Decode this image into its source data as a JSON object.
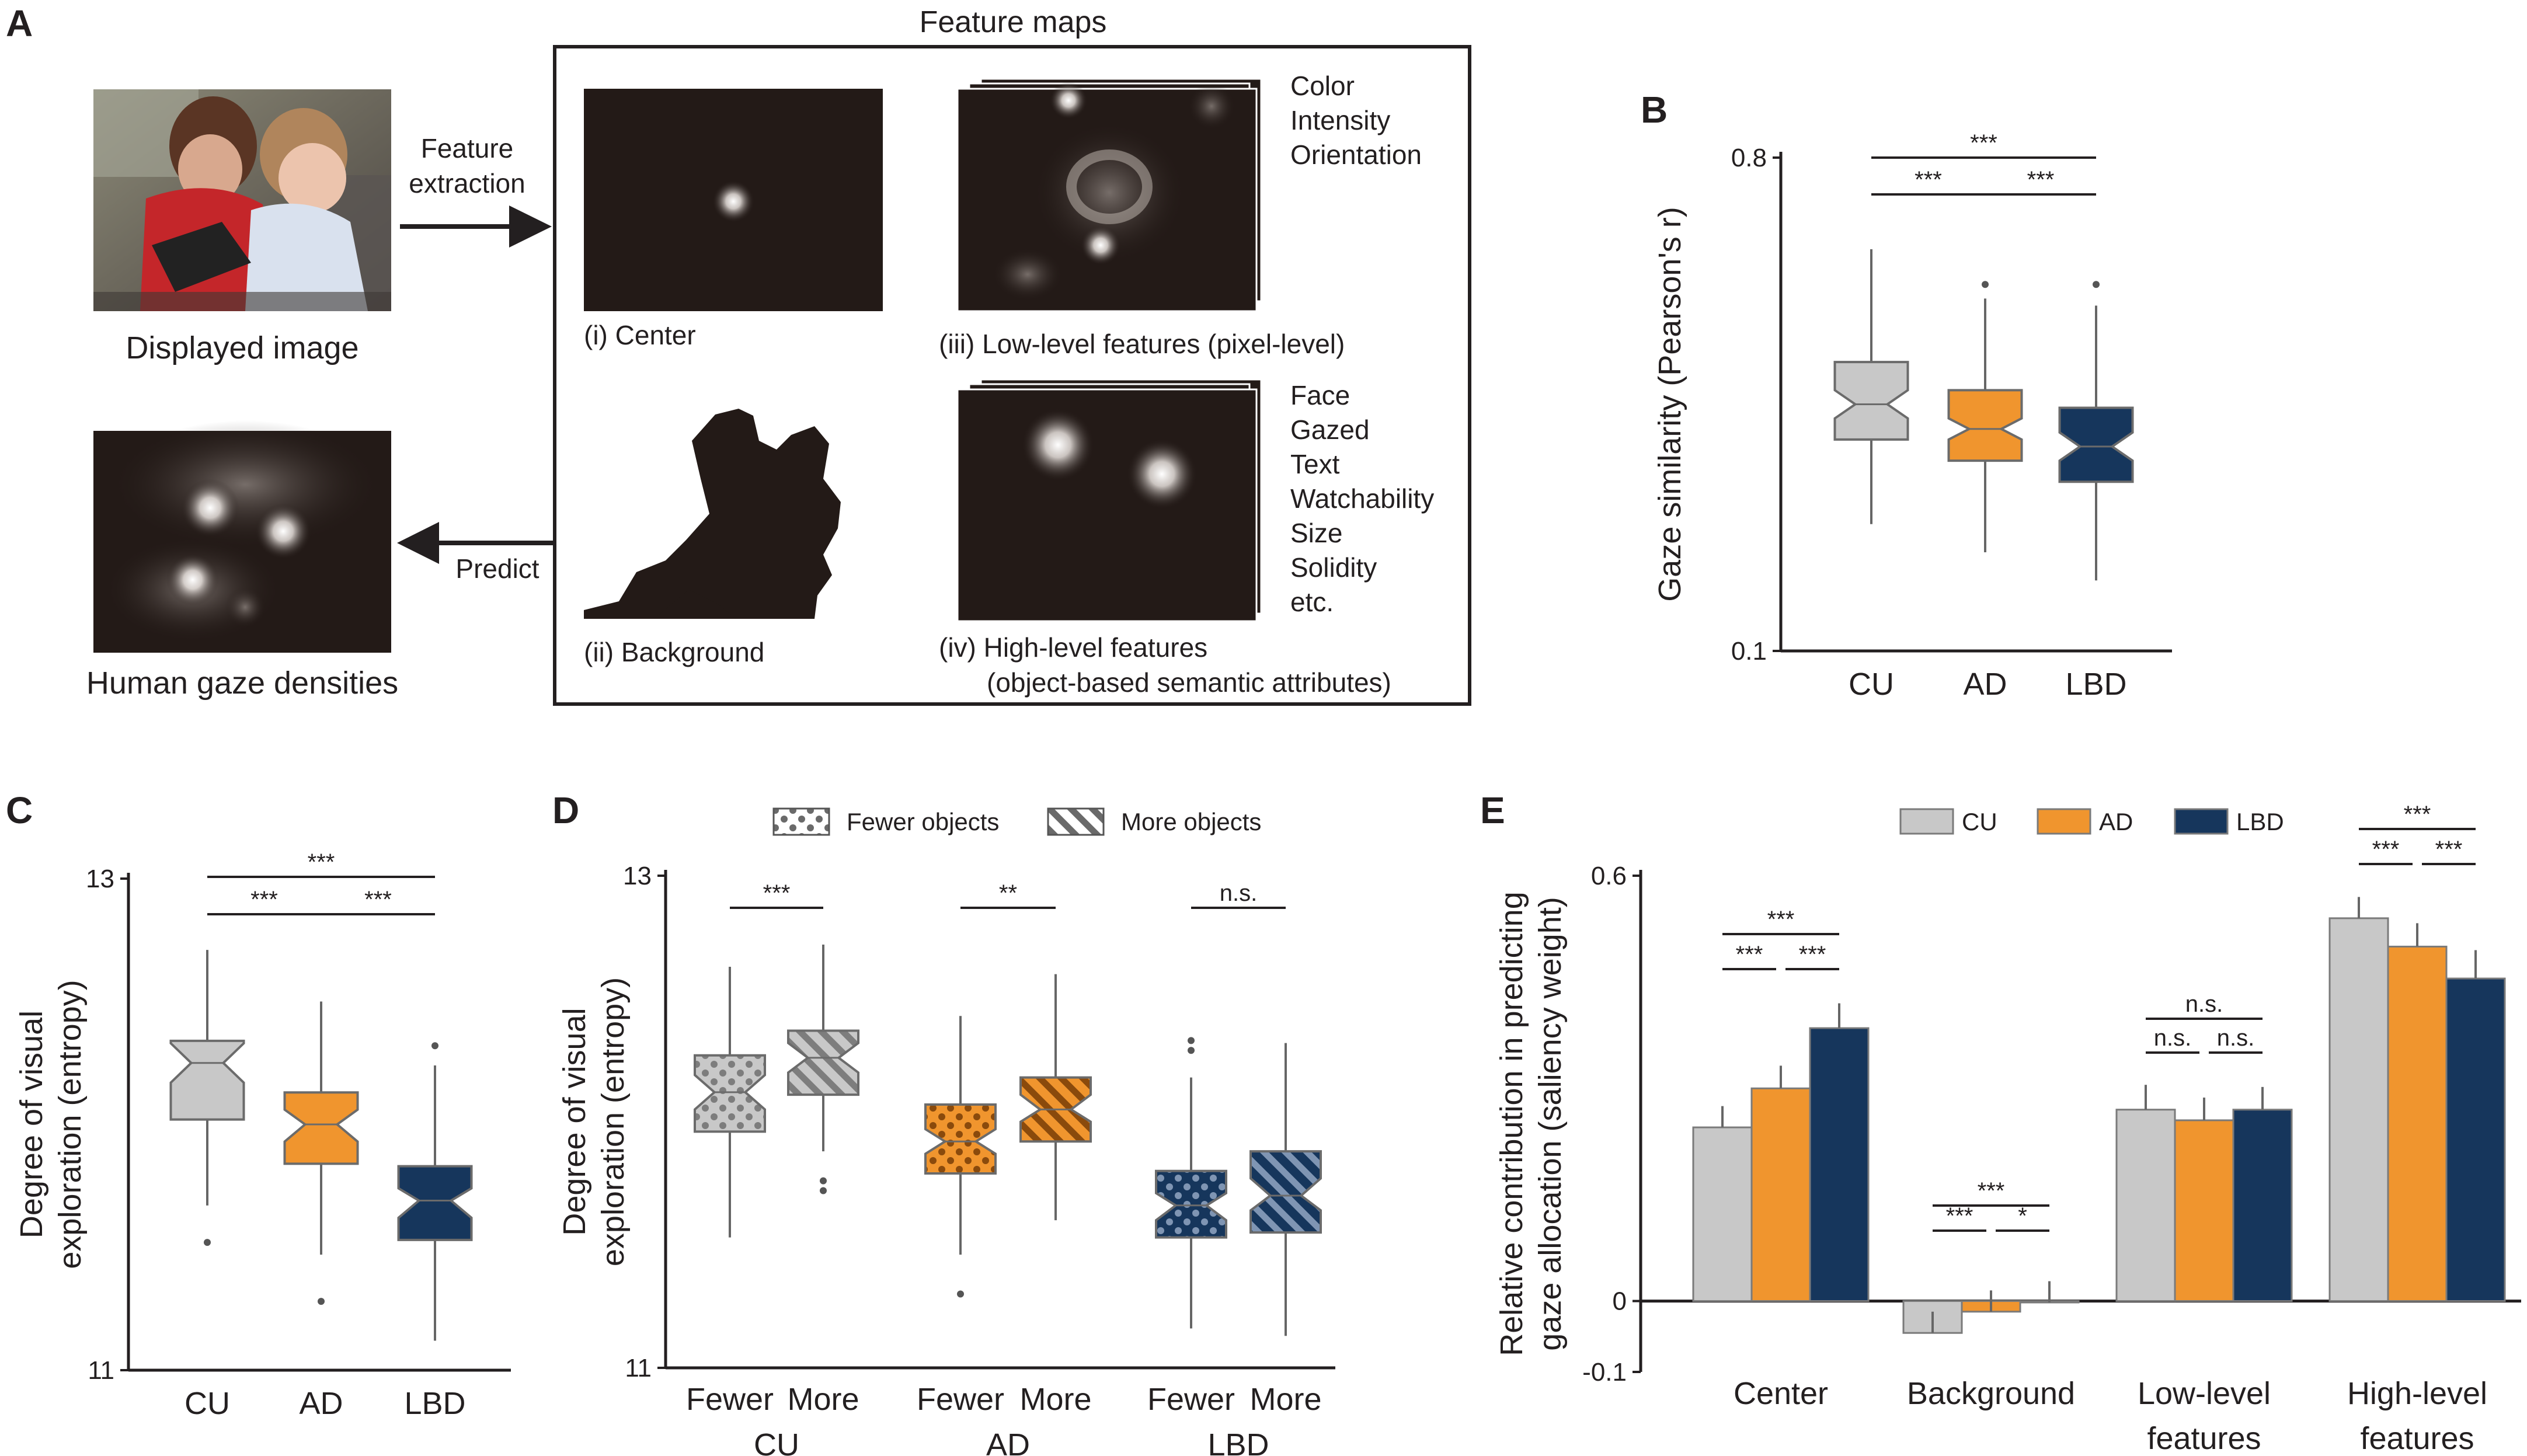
{
  "panel_a": {
    "letter": "A",
    "feature_maps_title": "Feature maps",
    "displayed_image_label": "Displayed image",
    "human_gaze_label": "Human gaze densities",
    "feature_extraction_line1": "Feature",
    "feature_extraction_line2": "extraction",
    "predict_label": "Predict",
    "center_label": "(i) Center",
    "background_label": "(ii) Background",
    "low_level_label": "(iii) Low-level features (pixel-level)",
    "high_level_label_line1": "(iv) High-level features",
    "high_level_label_line2": "(object-based semantic attributes)",
    "low_level_items": [
      "Color",
      "Intensity",
      "Orientation"
    ],
    "high_level_items": [
      "Face",
      "Gazed",
      "Text",
      "Watchability",
      "Size",
      "Solidity",
      "etc."
    ]
  },
  "colors": {
    "CU": "#c8c8c8",
    "AD": "#f0952e",
    "LBD": "#16365c",
    "map_bg": "#231a17"
  },
  "chart_data": [
    {
      "panel": "B",
      "type": "box",
      "ylabel": "Gaze similarity (Pearson's r)",
      "ylim": [
        0.1,
        0.8
      ],
      "yticks": [
        0.1,
        0.8
      ],
      "categories": [
        "CU",
        "AD",
        "LBD"
      ],
      "boxes": [
        {
          "name": "CU",
          "whisker_low": 0.28,
          "q1": 0.4,
          "notch_low": 0.43,
          "median": 0.45,
          "notch_high": 0.47,
          "q3": 0.51,
          "whisker_high": 0.67,
          "outliers": []
        },
        {
          "name": "AD",
          "whisker_low": 0.24,
          "q1": 0.37,
          "notch_low": 0.4,
          "median": 0.415,
          "notch_high": 0.43,
          "q3": 0.47,
          "whisker_high": 0.6,
          "outliers": [
            0.62
          ]
        },
        {
          "name": "LBD",
          "whisker_low": 0.2,
          "q1": 0.34,
          "notch_low": 0.37,
          "median": 0.39,
          "notch_high": 0.41,
          "q3": 0.445,
          "whisker_high": 0.59,
          "outliers": [
            0.62
          ]
        }
      ],
      "significance": [
        {
          "from": "CU",
          "to": "AD",
          "label": "***",
          "level": 1
        },
        {
          "from": "AD",
          "to": "LBD",
          "label": "***",
          "level": 1
        },
        {
          "from": "CU",
          "to": "LBD",
          "label": "***",
          "level": 2
        }
      ]
    },
    {
      "panel": "C",
      "type": "box",
      "ylabel": "Degree of visual exploration (entropy)",
      "ylim": [
        11,
        13
      ],
      "yticks": [
        11,
        13
      ],
      "categories": [
        "CU",
        "AD",
        "LBD"
      ],
      "boxes": [
        {
          "name": "CU",
          "whisker_low": 11.67,
          "q1": 12.02,
          "notch_low": 12.17,
          "median": 12.25,
          "notch_high": 12.33,
          "q3": 12.34,
          "whisker_high": 12.71,
          "outliers": [
            11.52
          ]
        },
        {
          "name": "AD",
          "whisker_low": 11.47,
          "q1": 11.84,
          "notch_low": 11.93,
          "median": 12.0,
          "notch_high": 12.06,
          "q3": 12.13,
          "whisker_high": 12.5,
          "outliers": [
            11.28
          ]
        },
        {
          "name": "LBD",
          "whisker_low": 11.12,
          "q1": 11.53,
          "notch_low": 11.62,
          "median": 11.69,
          "notch_high": 11.74,
          "q3": 11.83,
          "whisker_high": 12.24,
          "outliers": [
            12.32
          ]
        }
      ],
      "significance": [
        {
          "from": "CU",
          "to": "AD",
          "label": "***",
          "level": 1
        },
        {
          "from": "AD",
          "to": "LBD",
          "label": "***",
          "level": 1
        },
        {
          "from": "CU",
          "to": "LBD",
          "label": "***",
          "level": 2
        }
      ]
    },
    {
      "panel": "D",
      "type": "box",
      "ylabel": "Degree of visual exploration (entropy)",
      "ylim": [
        11,
        13
      ],
      "yticks": [
        11,
        13
      ],
      "legend": [
        "Fewer objects",
        "More objects"
      ],
      "legend_position": "top",
      "groups": [
        "CU",
        "AD",
        "LBD"
      ],
      "categories": [
        "Fewer",
        "More",
        "Fewer",
        "More",
        "Fewer",
        "More"
      ],
      "boxes": [
        {
          "group": "CU",
          "name": "Fewer",
          "pattern": "dots",
          "whisker_low": 11.53,
          "q1": 11.96,
          "notch_low": 12.05,
          "median": 12.12,
          "notch_high": 12.19,
          "q3": 12.27,
          "whisker_high": 12.63,
          "outliers": []
        },
        {
          "group": "CU",
          "name": "More",
          "pattern": "stripes",
          "whisker_low": 11.88,
          "q1": 12.11,
          "notch_low": 12.2,
          "median": 12.26,
          "notch_high": 12.32,
          "q3": 12.37,
          "whisker_high": 12.72,
          "outliers": [
            11.72,
            11.76
          ]
        },
        {
          "group": "AD",
          "name": "Fewer",
          "pattern": "dots",
          "whisker_low": 11.46,
          "q1": 11.79,
          "notch_low": 11.87,
          "median": 11.92,
          "notch_high": 11.97,
          "q3": 12.07,
          "whisker_high": 12.43,
          "outliers": [
            11.3
          ]
        },
        {
          "group": "AD",
          "name": "More",
          "pattern": "stripes",
          "whisker_low": 11.6,
          "q1": 11.92,
          "notch_low": 12.0,
          "median": 12.05,
          "notch_high": 12.11,
          "q3": 12.18,
          "whisker_high": 12.6,
          "outliers": []
        },
        {
          "group": "LBD",
          "name": "Fewer",
          "pattern": "dots",
          "whisker_low": 11.16,
          "q1": 11.53,
          "notch_low": 11.6,
          "median": 11.66,
          "notch_high": 11.71,
          "q3": 11.8,
          "whisker_high": 12.18,
          "outliers": [
            12.29,
            12.33
          ]
        },
        {
          "group": "LBD",
          "name": "More",
          "pattern": "stripes",
          "whisker_low": 11.13,
          "q1": 11.55,
          "notch_low": 11.64,
          "median": 11.7,
          "notch_high": 11.77,
          "q3": 11.88,
          "whisker_high": 12.32,
          "outliers": []
        }
      ],
      "significance": [
        {
          "group": "CU",
          "label": "***"
        },
        {
          "group": "AD",
          "label": "**"
        },
        {
          "group": "LBD",
          "label": "n.s."
        }
      ]
    },
    {
      "panel": "E",
      "type": "bar",
      "ylabel": "Relative contribution in predicting gaze allocation (saliency weight)",
      "ylim": [
        -0.1,
        0.6
      ],
      "yticks": [
        0.6,
        0,
        -0.1
      ],
      "legend_position": "top",
      "categories": [
        "Center",
        "Background",
        "Low-level features",
        "High-level features"
      ],
      "series": [
        {
          "name": "CU",
          "values": [
            0.245,
            -0.045,
            0.27,
            0.54
          ],
          "errors": [
            0.03,
            0.03,
            0.035,
            0.03
          ]
        },
        {
          "name": "AD",
          "values": [
            0.3,
            -0.015,
            0.255,
            0.5
          ],
          "errors": [
            0.032,
            0.03,
            0.032,
            0.033
          ]
        },
        {
          "name": "LBD",
          "values": [
            0.385,
            -0.002,
            0.27,
            0.455
          ],
          "errors": [
            0.035,
            0.03,
            0.032,
            0.04
          ]
        }
      ],
      "significance": [
        {
          "category": "Center",
          "pairs": [
            {
              "from": "CU",
              "to": "AD",
              "label": "***",
              "level": 1
            },
            {
              "from": "AD",
              "to": "LBD",
              "label": "***",
              "level": 1
            },
            {
              "from": "CU",
              "to": "LBD",
              "label": "***",
              "level": 2
            }
          ]
        },
        {
          "category": "Background",
          "pairs": [
            {
              "from": "CU",
              "to": "AD",
              "label": "***",
              "level": 1
            },
            {
              "from": "AD",
              "to": "LBD",
              "label": "*",
              "level": 1
            },
            {
              "from": "CU",
              "to": "LBD",
              "label": "***",
              "level": 2
            }
          ]
        },
        {
          "category": "Low-level features",
          "pairs": [
            {
              "from": "CU",
              "to": "AD",
              "label": "n.s.",
              "level": 1
            },
            {
              "from": "AD",
              "to": "LBD",
              "label": "n.s.",
              "level": 1
            },
            {
              "from": "CU",
              "to": "LBD",
              "label": "n.s.",
              "level": 2
            }
          ]
        },
        {
          "category": "High-level features",
          "pairs": [
            {
              "from": "CU",
              "to": "AD",
              "label": "***",
              "level": 1
            },
            {
              "from": "AD",
              "to": "LBD",
              "label": "***",
              "level": 1
            },
            {
              "from": "CU",
              "to": "LBD",
              "label": "***",
              "level": 2
            }
          ]
        }
      ]
    }
  ]
}
